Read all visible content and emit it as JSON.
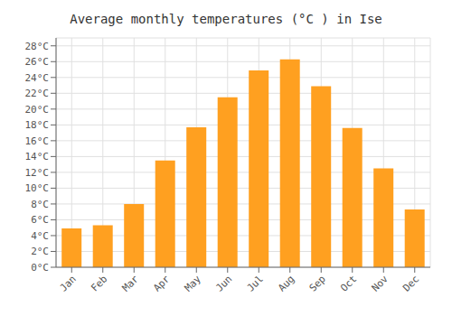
{
  "chart_data": {
    "type": "bar",
    "title": "Average monthly temperatures (°C ) in Ise",
    "categories": [
      "Jan",
      "Feb",
      "Mar",
      "Apr",
      "May",
      "Jun",
      "Jul",
      "Aug",
      "Sep",
      "Oct",
      "Nov",
      "Dec"
    ],
    "values": [
      4.9,
      5.3,
      8.0,
      13.5,
      17.7,
      21.5,
      24.9,
      26.3,
      22.9,
      17.6,
      12.5,
      7.3
    ],
    "color": "#FFA020",
    "ylim": [
      0,
      29
    ],
    "yticks": [
      {
        "value": 0,
        "label": "0°C"
      },
      {
        "value": 2,
        "label": "2°C"
      },
      {
        "value": 4,
        "label": "4°C"
      },
      {
        "value": 6,
        "label": "6°C"
      },
      {
        "value": 8,
        "label": "8°C"
      },
      {
        "value": 10,
        "label": "10°C"
      },
      {
        "value": 12,
        "label": "12°C"
      },
      {
        "value": 14,
        "label": "14°C"
      },
      {
        "value": 16,
        "label": "16°C"
      },
      {
        "value": 18,
        "label": "18°C"
      },
      {
        "value": 20,
        "label": "20°C"
      },
      {
        "value": 22,
        "label": "22°C"
      },
      {
        "value": 24,
        "label": "24°C"
      },
      {
        "value": 26,
        "label": "26°C"
      },
      {
        "value": 28,
        "label": "28°C"
      }
    ],
    "grid": true
  }
}
